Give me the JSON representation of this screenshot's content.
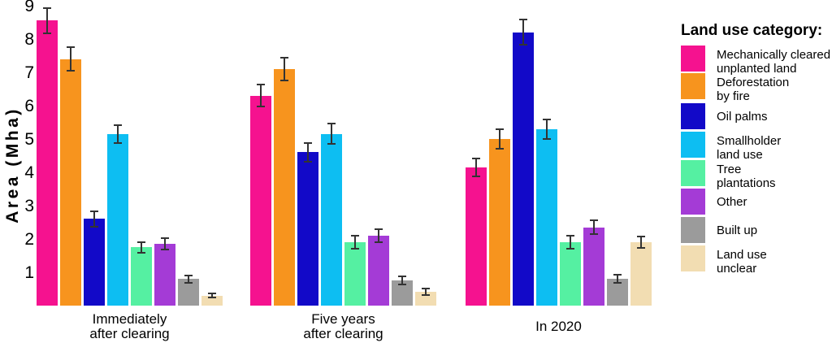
{
  "chart_data": {
    "type": "bar",
    "ylabel": "Area (Mha)",
    "ylim": [
      0,
      9
    ],
    "yticks": [
      1,
      2,
      3,
      4,
      5,
      6,
      7,
      8,
      9
    ],
    "grid": false,
    "legend_title": "Land use category:",
    "legend_position": "right",
    "error_bar_color": "#333333",
    "categories": [
      "Immediately after clearing",
      "Five years after clearing",
      "In 2020"
    ],
    "category_label_lines": [
      [
        "Immediately",
        "after clearing"
      ],
      [
        "Five years",
        "after clearing"
      ],
      [
        "In 2020"
      ]
    ],
    "series": [
      {
        "name": "Mechanically cleared unplanted land",
        "legend_lines": [
          "Mechanically cleared",
          "unplanted land"
        ],
        "color": "#F5128F",
        "values": [
          8.55,
          6.3,
          4.15
        ],
        "errors": [
          0.4,
          0.35,
          0.3
        ]
      },
      {
        "name": "Deforestation by fire",
        "legend_lines": [
          "Deforestation",
          "by fire"
        ],
        "color": "#F7941E",
        "values": [
          7.4,
          7.1,
          5.0
        ],
        "errors": [
          0.37,
          0.36,
          0.32
        ]
      },
      {
        "name": "Oil palms",
        "legend_lines": [
          "Oil palms"
        ],
        "color": "#1209C8",
        "values": [
          2.6,
          4.6,
          8.2
        ],
        "errors": [
          0.25,
          0.3,
          0.4
        ]
      },
      {
        "name": "Smallholder land use",
        "legend_lines": [
          "Smallholder",
          "land use"
        ],
        "color": "#0DBEF2",
        "values": [
          5.15,
          5.15,
          5.3
        ],
        "errors": [
          0.3,
          0.33,
          0.32
        ]
      },
      {
        "name": "Tree plantations",
        "legend_lines": [
          "Tree",
          "plantations"
        ],
        "color": "#55F0A2",
        "values": [
          1.75,
          1.9,
          1.9
        ],
        "errors": [
          0.18,
          0.22,
          0.22
        ]
      },
      {
        "name": "Other",
        "legend_lines": [
          "Other"
        ],
        "color": "#A43BD6",
        "values": [
          1.85,
          2.1,
          2.35
        ],
        "errors": [
          0.2,
          0.22,
          0.23
        ]
      },
      {
        "name": "Built up",
        "legend_lines": [
          "Built up"
        ],
        "color": "#9B9B9B",
        "values": [
          0.8,
          0.75,
          0.8
        ],
        "errors": [
          0.13,
          0.15,
          0.15
        ]
      },
      {
        "name": "Land use unclear",
        "legend_lines": [
          "Land use",
          "unclear"
        ],
        "color": "#F2DDB2",
        "values": [
          0.3,
          0.42,
          1.9
        ],
        "errors": [
          0.08,
          0.12,
          0.2
        ]
      }
    ]
  }
}
